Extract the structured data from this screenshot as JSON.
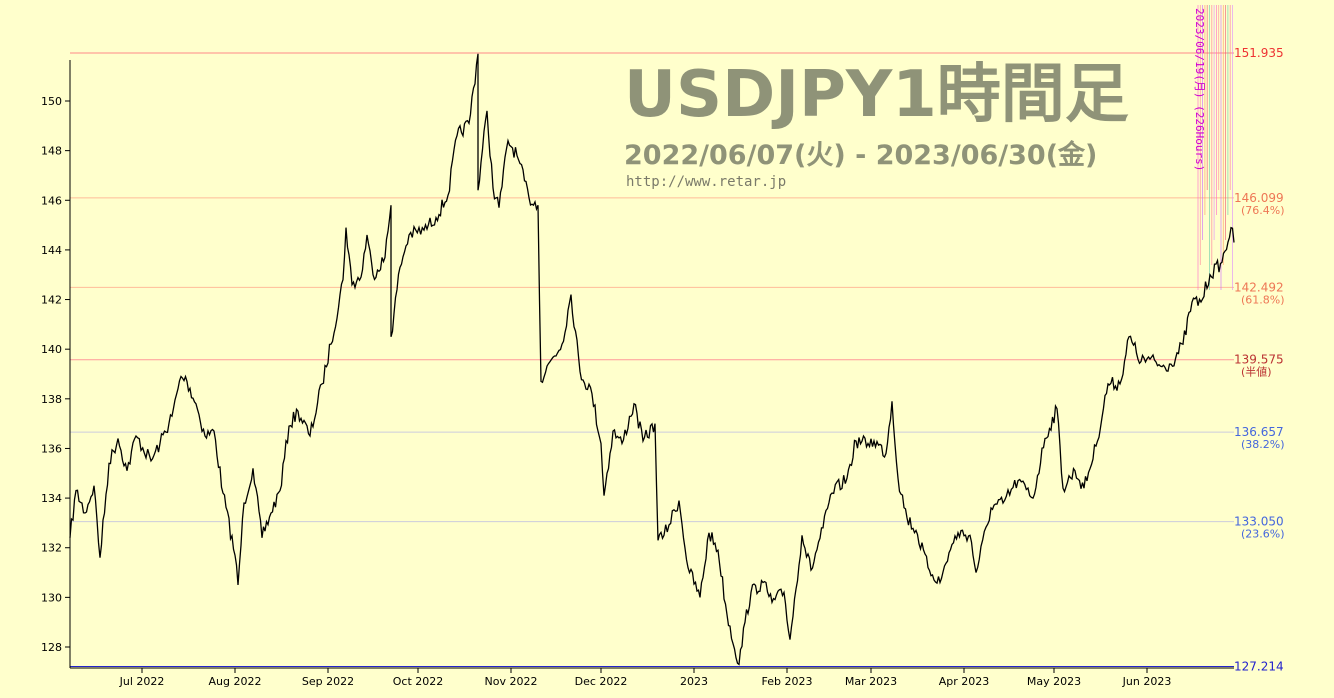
{
  "chart_data": {
    "type": "line",
    "title": "USDJPY1時間足",
    "subtitle": "2022/06/07(火) - 2023/06/30(金)",
    "source": "http://www.retar.jp",
    "ylim": [
      127.2,
      151.95
    ],
    "x_ticks": [
      "Jul 2022",
      "Aug 2022",
      "Sep 2022",
      "Oct 2022",
      "Nov 2022",
      "Dec 2022",
      "2023",
      "Feb 2023",
      "Mar 2023",
      "Apr 2023",
      "May 2023",
      "Jun 2023"
    ],
    "y_ticks": [
      128,
      130,
      132,
      134,
      136,
      138,
      140,
      142,
      144,
      146,
      148,
      150
    ],
    "x_range": [
      "2022-06-07",
      "2023-06-30"
    ],
    "series": [
      {
        "values": [
          [
            "2022-06-07",
            132.4
          ],
          [
            "2022-06-09",
            134.3
          ],
          [
            "2022-06-12",
            133.4
          ],
          [
            "2022-06-15",
            134.5
          ],
          [
            "2022-06-17",
            131.6
          ],
          [
            "2022-06-20",
            135.4
          ],
          [
            "2022-06-23",
            136.4
          ],
          [
            "2022-06-26",
            135.1
          ],
          [
            "2022-06-29",
            136.5
          ],
          [
            "2022-07-04",
            135.5
          ],
          [
            "2022-07-07",
            136.2
          ],
          [
            "2022-07-11",
            137.3
          ],
          [
            "2022-07-14",
            138.9
          ],
          [
            "2022-07-16",
            138.7
          ],
          [
            "2022-07-19",
            137.8
          ],
          [
            "2022-07-22",
            136.5
          ],
          [
            "2022-07-25",
            136.7
          ],
          [
            "2022-07-28",
            134.2
          ],
          [
            "2022-08-01",
            131.7
          ],
          [
            "2022-08-02",
            130.5
          ],
          [
            "2022-08-04",
            133.8
          ],
          [
            "2022-08-07",
            135.2
          ],
          [
            "2022-08-10",
            132.4
          ],
          [
            "2022-08-13",
            133.4
          ],
          [
            "2022-08-16",
            134.3
          ],
          [
            "2022-08-19",
            136.9
          ],
          [
            "2022-08-22",
            137.5
          ],
          [
            "2022-08-26",
            136.5
          ],
          [
            "2022-08-30",
            138.6
          ],
          [
            "2022-09-02",
            140.2
          ],
          [
            "2022-09-06",
            142.8
          ],
          [
            "2022-09-07",
            144.9
          ],
          [
            "2022-09-09",
            142.6
          ],
          [
            "2022-09-12",
            142.9
          ],
          [
            "2022-09-14",
            144.6
          ],
          [
            "2022-09-16",
            143.0
          ],
          [
            "2022-09-20",
            143.7
          ],
          [
            "2022-09-22",
            145.8
          ],
          [
            "2022-09-22",
            140.5
          ],
          [
            "2022-09-25",
            143.3
          ],
          [
            "2022-09-28",
            144.6
          ],
          [
            "2022-10-03",
            144.8
          ],
          [
            "2022-10-07",
            145.3
          ],
          [
            "2022-10-11",
            146.2
          ],
          [
            "2022-10-14",
            148.6
          ],
          [
            "2022-10-18",
            149.1
          ],
          [
            "2022-10-21",
            151.9
          ],
          [
            "2022-10-21",
            146.4
          ],
          [
            "2022-10-24",
            149.6
          ],
          [
            "2022-10-26",
            146.5
          ],
          [
            "2022-10-28",
            145.7
          ],
          [
            "2022-10-31",
            148.4
          ],
          [
            "2022-11-03",
            147.8
          ],
          [
            "2022-11-07",
            146.1
          ],
          [
            "2022-11-10",
            145.8
          ],
          [
            "2022-11-11",
            138.7
          ],
          [
            "2022-11-14",
            139.5
          ],
          [
            "2022-11-18",
            140.2
          ],
          [
            "2022-11-21",
            142.2
          ],
          [
            "2022-11-24",
            139.1
          ],
          [
            "2022-11-28",
            138.2
          ],
          [
            "2022-12-01",
            136.2
          ],
          [
            "2022-12-02",
            134.1
          ],
          [
            "2022-12-05",
            136.7
          ],
          [
            "2022-12-08",
            136.2
          ],
          [
            "2022-12-12",
            137.8
          ],
          [
            "2022-12-15",
            136.3
          ],
          [
            "2022-12-19",
            137.0
          ],
          [
            "2022-12-20",
            132.3
          ],
          [
            "2022-12-22",
            132.5
          ],
          [
            "2022-12-27",
            133.9
          ],
          [
            "2022-12-30",
            131.2
          ],
          [
            "2023-01-03",
            130.0
          ],
          [
            "2023-01-06",
            132.6
          ],
          [
            "2023-01-09",
            131.9
          ],
          [
            "2023-01-12",
            129.3
          ],
          [
            "2023-01-16",
            127.3
          ],
          [
            "2023-01-18",
            129.0
          ],
          [
            "2023-01-20",
            130.2
          ],
          [
            "2023-01-24",
            130.6
          ],
          [
            "2023-01-27",
            129.8
          ],
          [
            "2023-01-31",
            130.2
          ],
          [
            "2023-02-02",
            128.3
          ],
          [
            "2023-02-06",
            132.5
          ],
          [
            "2023-02-09",
            131.1
          ],
          [
            "2023-02-13",
            132.8
          ],
          [
            "2023-02-16",
            134.2
          ],
          [
            "2023-02-21",
            134.8
          ],
          [
            "2023-02-24",
            136.3
          ],
          [
            "2023-02-28",
            136.2
          ],
          [
            "2023-03-02",
            136.3
          ],
          [
            "2023-03-06",
            135.8
          ],
          [
            "2023-03-08",
            137.9
          ],
          [
            "2023-03-10",
            134.8
          ],
          [
            "2023-03-13",
            133.2
          ],
          [
            "2023-03-16",
            132.7
          ],
          [
            "2023-03-20",
            131.2
          ],
          [
            "2023-03-24",
            130.6
          ],
          [
            "2023-03-27",
            131.8
          ],
          [
            "2023-03-30",
            132.6
          ],
          [
            "2023-04-03",
            132.5
          ],
          [
            "2023-04-05",
            131.0
          ],
          [
            "2023-04-10",
            133.6
          ],
          [
            "2023-04-14",
            133.8
          ],
          [
            "2023-04-19",
            134.7
          ],
          [
            "2023-04-24",
            134.0
          ],
          [
            "2023-04-28",
            136.4
          ],
          [
            "2023-05-02",
            137.6
          ],
          [
            "2023-05-04",
            134.4
          ],
          [
            "2023-05-08",
            135.1
          ],
          [
            "2023-05-11",
            134.4
          ],
          [
            "2023-05-15",
            136.1
          ],
          [
            "2023-05-19",
            138.6
          ],
          [
            "2023-05-23",
            138.6
          ],
          [
            "2023-05-26",
            140.5
          ],
          [
            "2023-05-30",
            139.5
          ],
          [
            "2023-06-02",
            139.6
          ],
          [
            "2023-06-06",
            139.3
          ],
          [
            "2023-06-09",
            139.4
          ],
          [
            "2023-06-13",
            140.2
          ],
          [
            "2023-06-16",
            141.9
          ],
          [
            "2023-06-19",
            141.9
          ],
          [
            "2023-06-22",
            143.0
          ],
          [
            "2023-06-26",
            143.5
          ],
          [
            "2023-06-29",
            144.9
          ],
          [
            "2023-06-30",
            144.3
          ]
        ]
      }
    ],
    "fib_levels": [
      {
        "price": "151.935",
        "pct": "",
        "value": 151.935,
        "color": "#ee3333",
        "line_color": "#ff8888"
      },
      {
        "price": "146.099",
        "pct": "(76.4%)",
        "value": 146.099,
        "color": "#ee7755",
        "line_color": "#ffbb99"
      },
      {
        "price": "142.492",
        "pct": "(61.8%)",
        "value": 142.492,
        "color": "#ee7755",
        "line_color": "#ffbb99"
      },
      {
        "price": "139.575",
        "pct": "(半値)",
        "value": 139.575,
        "color": "#bb3333",
        "line_color": "#ff9999"
      },
      {
        "price": "136.657",
        "pct": "(38.2%)",
        "value": 136.657,
        "color": "#4466dd",
        "line_color": "#ccccdd"
      },
      {
        "price": "133.050",
        "pct": "(23.6%)",
        "value": 133.05,
        "color": "#4466dd",
        "line_color": "#ccccdd"
      },
      {
        "price": "127.214",
        "pct": "",
        "value": 127.214,
        "color": "#2222cc",
        "line_color": "#2222cc"
      }
    ],
    "annotation": "2023/06/19(月) (226Hours)",
    "grid": false
  }
}
